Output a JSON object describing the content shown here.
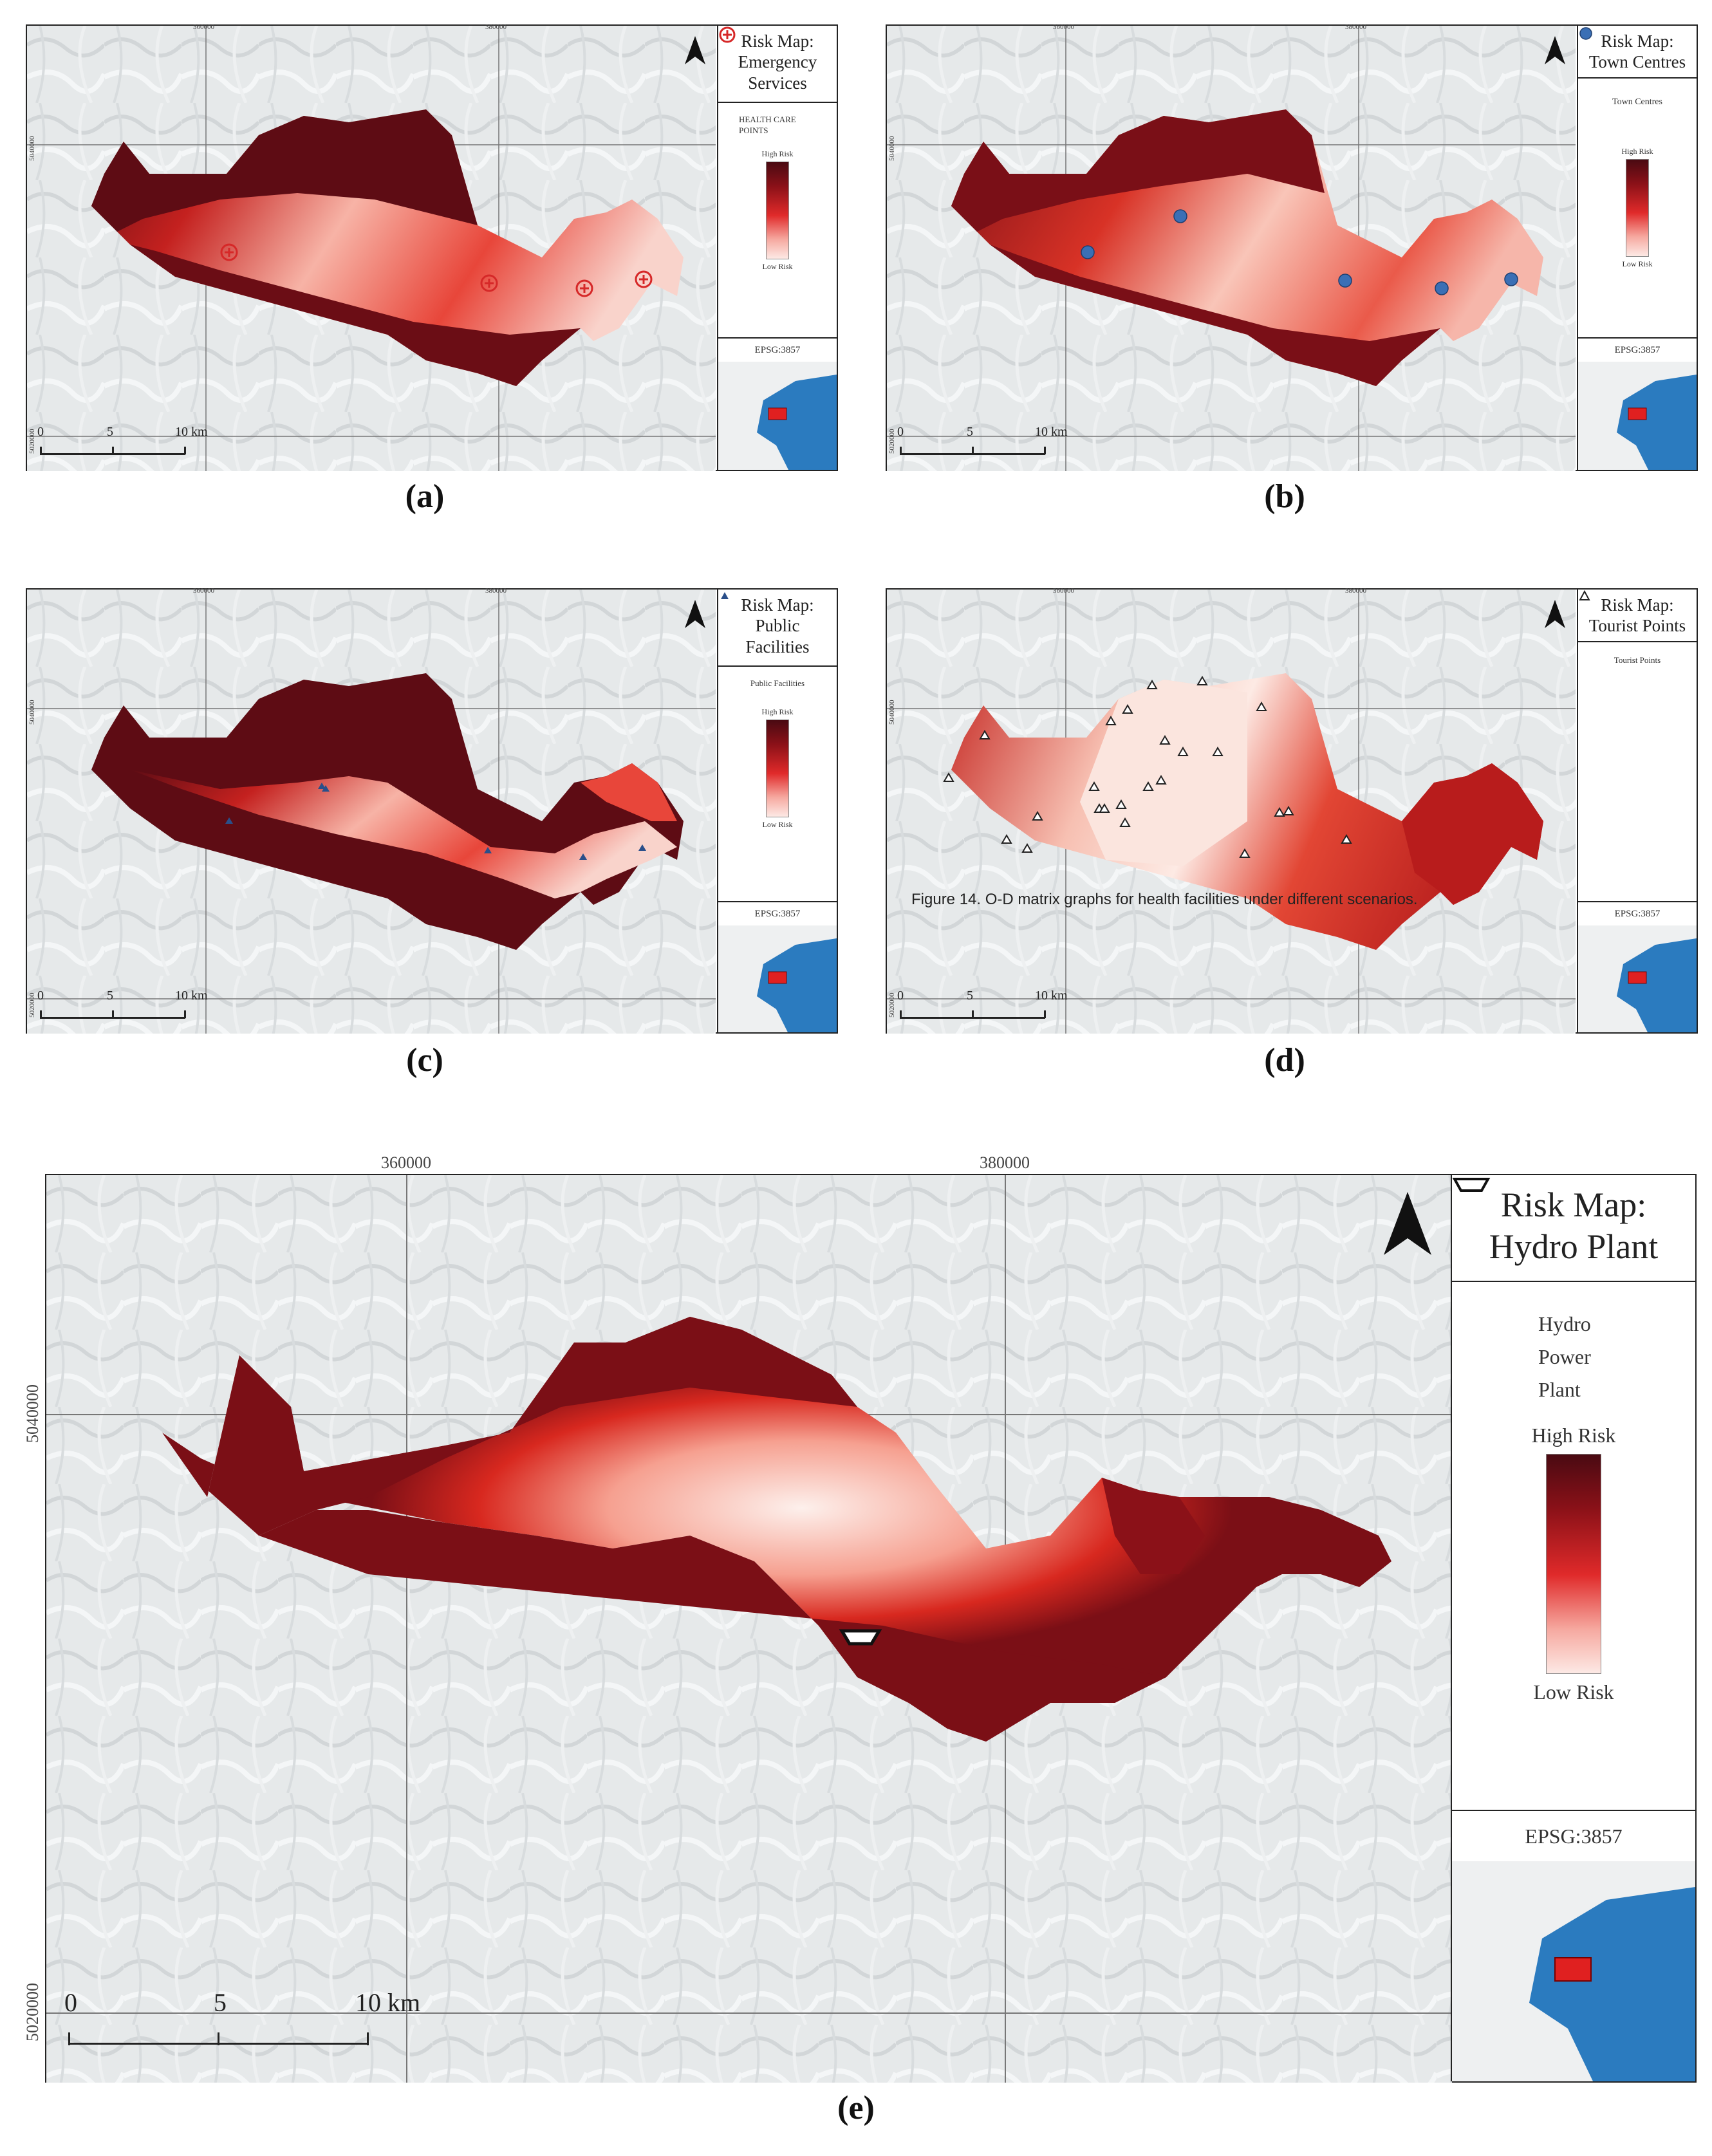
{
  "panels": {
    "a": {
      "caption": "(a)",
      "title": "Risk Map: Emergency Services",
      "layer_label": "HEALTH CARE POINTS",
      "layer_icon": "cross-circle-icon",
      "high_label": "High Risk",
      "low_label": "Low Risk",
      "epsg": "EPSG:3857",
      "x_coords": [
        "360000",
        "380000"
      ],
      "y_coords": [
        "5040000",
        "5020000"
      ],
      "scale": [
        "0",
        "5",
        "10 km"
      ]
    },
    "b": {
      "caption": "(b)",
      "title": "Risk Map: Town Centres",
      "layer_label": "Town Centres",
      "layer_icon": "dot-icon",
      "high_label": "High Risk",
      "low_label": "Low Risk",
      "epsg": "EPSG:3857",
      "x_coords": [
        "360000",
        "380000"
      ],
      "y_coords": [
        "5040000",
        "5020000"
      ],
      "scale": [
        "0",
        "5",
        "10 km"
      ]
    },
    "c": {
      "caption": "(c)",
      "title": "Risk Map: Public Facilities",
      "layer_label": "Public Facilities",
      "layer_icon": "triangle-icon",
      "high_label": "High Risk",
      "low_label": "Low Risk",
      "epsg": "EPSG:3857",
      "x_coords": [
        "360000",
        "380000"
      ],
      "y_coords": [
        "5040000",
        "5020000"
      ],
      "scale": [
        "0",
        "5",
        "10 km"
      ]
    },
    "d": {
      "caption": "(d)",
      "title": "Risk Map: Tourist Points",
      "layer_label": "Tourist Points",
      "layer_icon": "tourist-triangle-icon",
      "epsg": "EPSG:3857",
      "x_coords": [
        "360000",
        "380000"
      ],
      "y_coords": [
        "5040000",
        "5020000"
      ],
      "scale": [
        "0",
        "5",
        "10 km"
      ],
      "note": "Figure 14. O-D matrix graphs for health facilities under different scenarios."
    },
    "e": {
      "caption": "(e)",
      "title": "Risk Map: Hydro Plant",
      "layer_label": "Hydro Power Plant",
      "layer_icon": "trapezoid-icon",
      "high_label": "High Risk",
      "low_label": "Low Risk",
      "epsg": "EPSG:3857",
      "x_coords": [
        "360000",
        "380000"
      ],
      "y_coords": [
        "5040000",
        "5020000"
      ],
      "scale": [
        "0",
        "5",
        "10 km"
      ]
    }
  },
  "colors": {
    "high_risk": "#4a0a12",
    "mid_risk": "#e02a2a",
    "low_risk": "#fde9e5",
    "marker_red": "#d62828",
    "marker_blue": "#3a6fb5",
    "inset_blue": "#2b7bbf",
    "study_area": "#e02020"
  }
}
